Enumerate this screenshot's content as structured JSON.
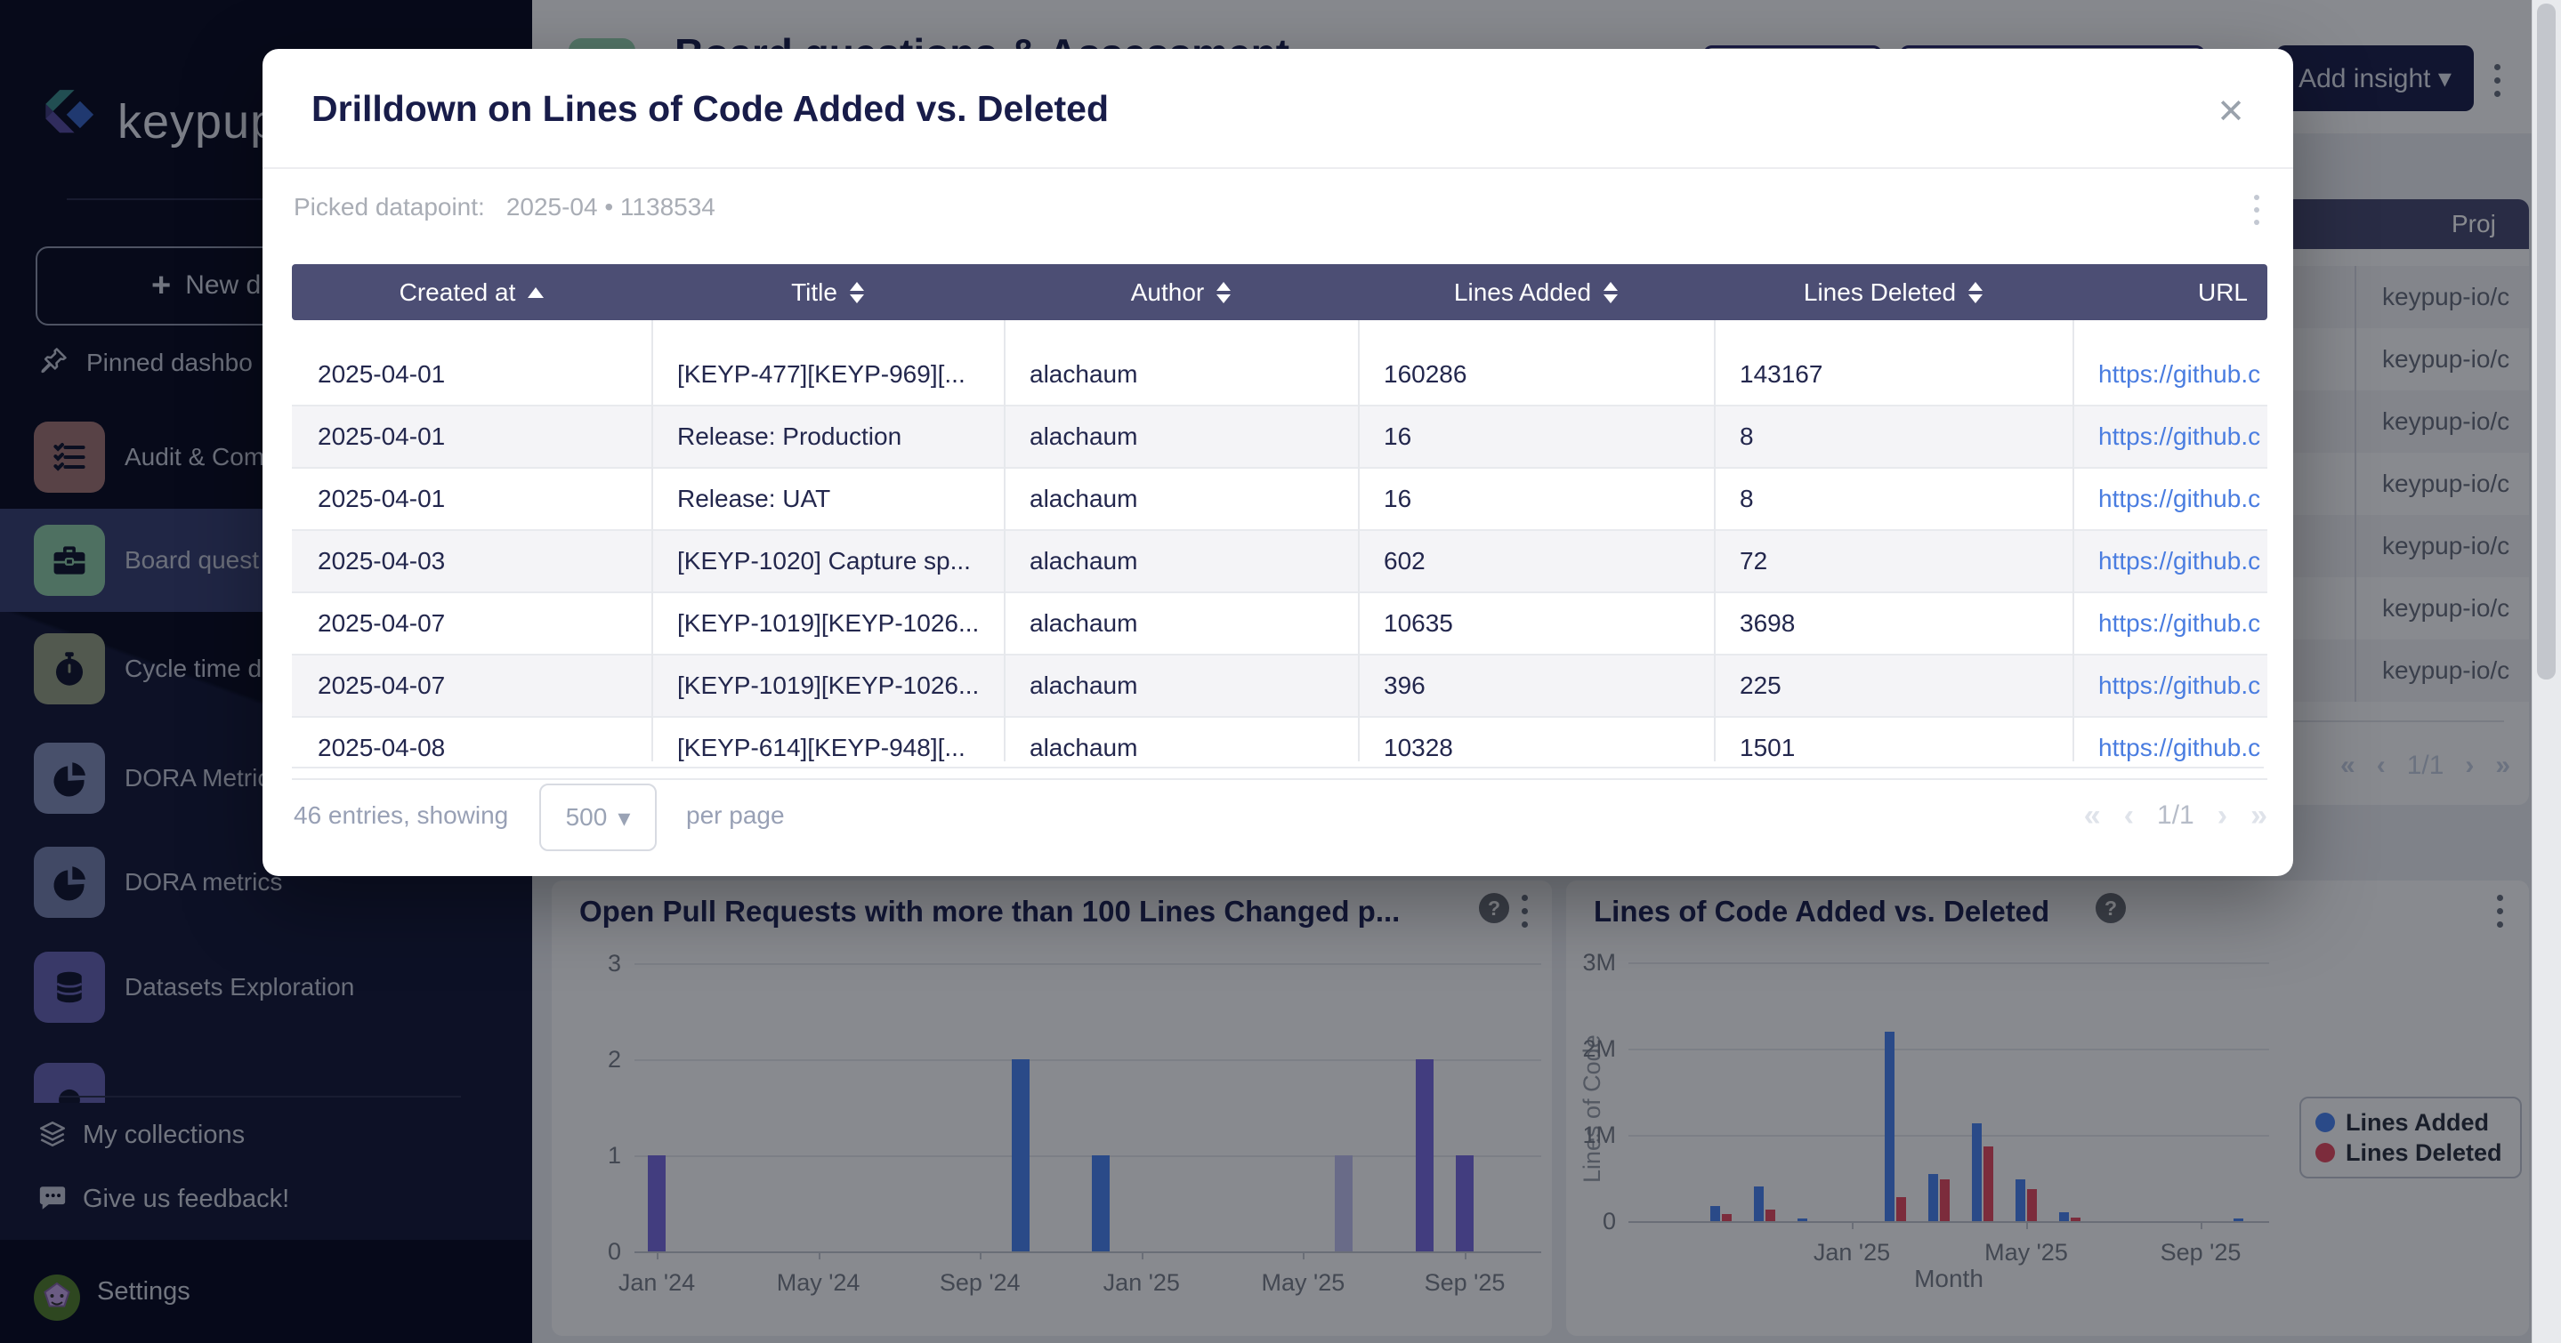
{
  "sidebar": {
    "logo_text": "keypup",
    "new_dashboard_label": "New d",
    "pinned_label": "Pinned dashbo",
    "nav_items": [
      {
        "label": "Audit & Com",
        "icon": "checklist-icon",
        "tile_color": "#a57876",
        "active": false
      },
      {
        "label": "Board quest",
        "icon": "briefcase-icon",
        "tile_color": "#92cfa9",
        "active": true
      },
      {
        "label": "Cycle time d",
        "icon": "stopwatch-icon",
        "tile_color": "#99a386",
        "active": false
      },
      {
        "label": "DORA Metric",
        "icon": "pie-icon",
        "tile_color": "#8691bb",
        "active": false
      },
      {
        "label": "DORA metrics",
        "icon": "pie-icon",
        "tile_color": "#7a85b0",
        "active": false
      },
      {
        "label": "Datasets Exploration",
        "icon": "database-icon",
        "tile_color": "#6b66b5",
        "active": false
      },
      {
        "label": "",
        "icon": "generic-icon",
        "tile_color": "#6b66b5",
        "active": false
      }
    ],
    "collections_label": "My collections",
    "feedback_label": "Give us feedback!",
    "settings_label": "Settings"
  },
  "topbar": {
    "title": "Board questions & Assessment",
    "add_insight_label": "Add insight",
    "add_insight_caret": "▾",
    "icon_color": "#9bd8b4"
  },
  "bg_table": {
    "header_label": "Proj",
    "rows": [
      "keypup-io/c",
      "keypup-io/c",
      "keypup-io/c",
      "keypup-io/c",
      "keypup-io/c",
      "keypup-io/c",
      "keypup-io/c"
    ],
    "pagination": {
      "first": "«",
      "prev": "‹",
      "page": "1/1",
      "next": "›",
      "last": "»"
    }
  },
  "modal": {
    "title": "Drilldown on Lines of Code Added vs. Deleted",
    "close_glyph": "✕",
    "picked_label": "Picked datapoint:",
    "picked_value": "2025-04 • 1138534",
    "table": {
      "columns": [
        {
          "label": "Created at",
          "sort": "asc"
        },
        {
          "label": "Title",
          "sort": "both"
        },
        {
          "label": "Author",
          "sort": "both"
        },
        {
          "label": "Lines Added",
          "sort": "both"
        },
        {
          "label": "Lines Deleted",
          "sort": "both"
        },
        {
          "label": "URL",
          "sort": "none"
        }
      ],
      "rows": [
        [
          "2025-04-01",
          "[KEYP-477][KEYP-969][...",
          "alachaum",
          "160286",
          "143167",
          "https://github.c"
        ],
        [
          "2025-04-01",
          "Release: Production",
          "alachaum",
          "16",
          "8",
          "https://github.c"
        ],
        [
          "2025-04-01",
          "Release: UAT",
          "alachaum",
          "16",
          "8",
          "https://github.c"
        ],
        [
          "2025-04-03",
          "[KEYP-1020] Capture sp...",
          "alachaum",
          "602",
          "72",
          "https://github.c"
        ],
        [
          "2025-04-07",
          "[KEYP-1019][KEYP-1026...",
          "alachaum",
          "10635",
          "3698",
          "https://github.c"
        ],
        [
          "2025-04-07",
          "[KEYP-1019][KEYP-1026...",
          "alachaum",
          "396",
          "225",
          "https://github.c"
        ],
        [
          "2025-04-08",
          "[KEYP-614][KEYP-948][...",
          "alachaum",
          "10328",
          "1501",
          "https://github.c"
        ]
      ]
    },
    "footer": {
      "entries_text": "46 entries, showing",
      "page_size": "500",
      "select_caret": "▾",
      "per_page_text": "per page",
      "pagination": {
        "first": "«",
        "prev": "‹",
        "page": "1/1",
        "next": "›",
        "last": "»"
      }
    }
  },
  "charts": {
    "legend": [
      {
        "label": "Lines Added",
        "color": "#4f86f2"
      },
      {
        "label": "Lines Deleted",
        "color": "#e84f63"
      }
    ]
  },
  "chart_data": [
    {
      "type": "bar",
      "title": "Open Pull Requests with more than 100 Lines Changed p...",
      "xlabel": "",
      "ylabel": "",
      "ylim": [
        0,
        3
      ],
      "yticks": [
        "0",
        "1",
        "2",
        "3"
      ],
      "x": [
        "2024-01",
        "2024-10",
        "2024-12",
        "2025-06",
        "2025-08",
        "2025-09"
      ],
      "y": [
        1,
        2,
        1,
        1,
        2,
        1
      ],
      "bar_colors": [
        "#7b6fe0",
        "#4f86f2",
        "#4f86f2",
        "#c5c5f2",
        "#7b6fe0",
        "#7b6fe0"
      ],
      "month_offsets_from_jan24": [
        0,
        9,
        11,
        17,
        19,
        20
      ],
      "xticks": [
        "Jan '24",
        "May '24",
        "Sep '24",
        "Jan '25",
        "May '25",
        "Sep '25"
      ],
      "xtick_offsets_from_jan24": [
        0,
        4,
        8,
        12,
        16,
        20
      ],
      "grid": true,
      "legend_position": "none"
    },
    {
      "type": "bar",
      "title": "Lines of Code Added vs. Deleted",
      "xlabel": "Month",
      "ylabel": "Lines of Code",
      "ylim": [
        0,
        3000000
      ],
      "yticks": [
        "0",
        "1M",
        "2M",
        "3M"
      ],
      "categories": [
        "2024-10",
        "2024-11",
        "2024-12",
        "2025-02",
        "2025-03",
        "2025-04",
        "2025-05",
        "2025-06",
        "2025-10"
      ],
      "month_offsets_from_jan25": [
        -3,
        -2,
        -1,
        1,
        2,
        3,
        4,
        5,
        9
      ],
      "series": [
        {
          "name": "Lines Added",
          "color": "#4f86f2",
          "values": [
            180000,
            400000,
            30000,
            2200000,
            550000,
            1138534,
            480000,
            100000,
            30000
          ]
        },
        {
          "name": "Lines Deleted",
          "color": "#e84f63",
          "values": [
            80000,
            130000,
            10000,
            280000,
            480000,
            870000,
            370000,
            40000,
            5000
          ]
        }
      ],
      "xticks": [
        "Jan '25",
        "May '25",
        "Sep '25"
      ],
      "xtick_offsets_from_jan25": [
        0,
        4,
        8
      ],
      "grid": true,
      "legend_position": "right"
    }
  ]
}
